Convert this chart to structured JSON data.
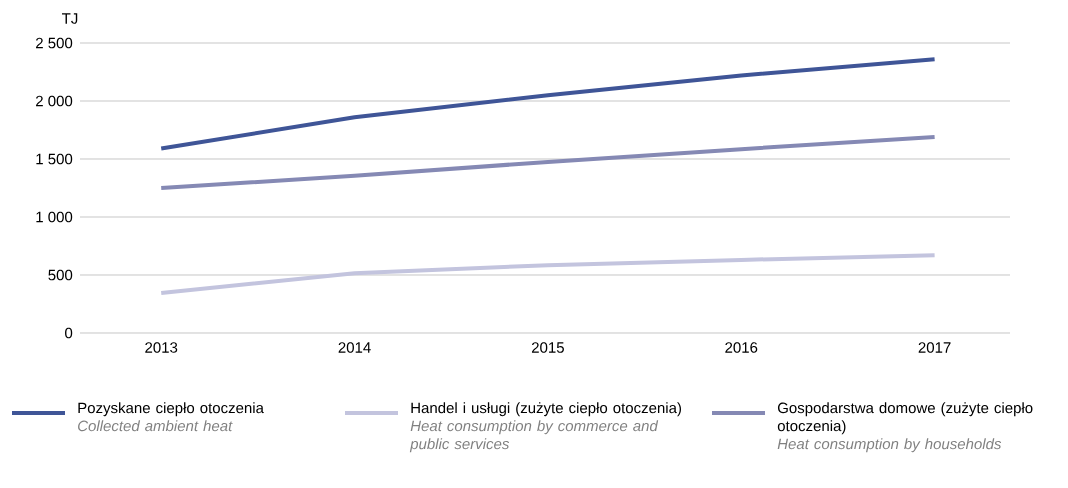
{
  "chart_data": {
    "type": "line",
    "ylabel": "TJ",
    "categories": [
      "2013",
      "2014",
      "2015",
      "2016",
      "2017"
    ],
    "series": [
      {
        "name": "Pozyskane ciepło otoczenia",
        "color": "#3f5597",
        "values": [
          1590,
          1860,
          2050,
          2220,
          2360
        ]
      },
      {
        "name": "Handel i usługi (zużyte ciepło otoczenia)",
        "color": "#c3c4de",
        "values": [
          345,
          515,
          585,
          630,
          670
        ]
      },
      {
        "name": "Gospodarstwa domowe (zużyte ciepło otoczenia)",
        "color": "#8589b4",
        "values": [
          1250,
          1355,
          1475,
          1585,
          1690
        ]
      }
    ],
    "annotations": [
      "Collected ambient heat",
      "Heat consumption by commerce and public services",
      "Heat consumption by households"
    ],
    "ylim": [
      0,
      2500
    ],
    "yticks": [
      0,
      {
        "value": 500,
        "label": "500"
      },
      {
        "value": 1000,
        "label": "1 000"
      },
      {
        "value": 1500,
        "label": "1 500"
      },
      {
        "value": 2000,
        "label": "2 000"
      },
      {
        "value": 2500,
        "label": "2 500"
      }
    ],
    "grid": "y",
    "legend": "bottom",
    "marker": "none",
    "line_style": "solid"
  }
}
